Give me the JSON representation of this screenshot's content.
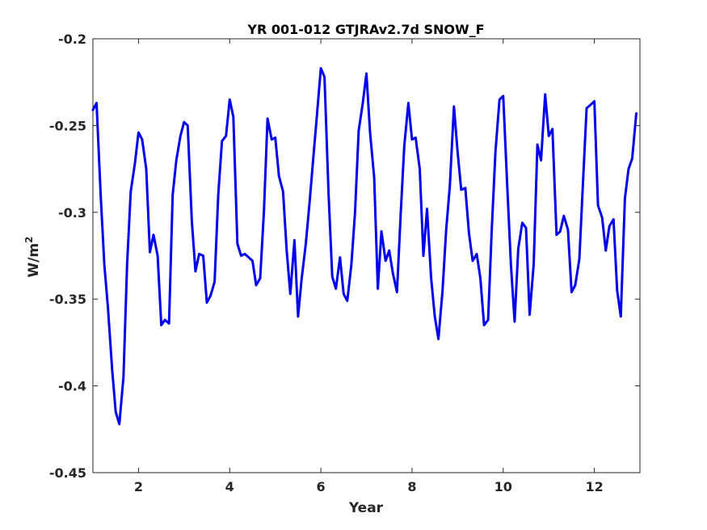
{
  "chart_data": {
    "type": "line",
    "title": "YR 001-012 GTJRAv2.7d SNOW_F",
    "xlabel": "Year",
    "ylabel": "W/m",
    "ylabel_sup": "2",
    "xlim": [
      1,
      13
    ],
    "ylim": [
      -0.45,
      -0.2
    ],
    "xticks": [
      2,
      4,
      6,
      8,
      10,
      12
    ],
    "xtick_labels": [
      "2",
      "4",
      "6",
      "8",
      "10",
      "12"
    ],
    "yticks": [
      -0.45,
      -0.4,
      -0.35,
      -0.3,
      -0.25,
      -0.2
    ],
    "ytick_labels": [
      "-0.45",
      "-0.4",
      "-0.35",
      "-0.3",
      "-0.25",
      "-0.2"
    ],
    "grid": true,
    "series": [
      {
        "color": "#0000ee",
        "x": [
          1.0,
          1.08,
          1.17,
          1.25,
          1.33,
          1.42,
          1.5,
          1.58,
          1.67,
          1.75,
          1.83,
          1.92,
          2.0,
          2.08,
          2.17,
          2.25,
          2.33,
          2.42,
          2.5,
          2.58,
          2.67,
          2.75,
          2.83,
          2.92,
          3.0,
          3.08,
          3.17,
          3.25,
          3.33,
          3.42,
          3.5,
          3.58,
          3.67,
          3.75,
          3.83,
          3.92,
          4.0,
          4.08,
          4.17,
          4.25,
          4.33,
          4.42,
          4.5,
          4.58,
          4.67,
          4.75,
          4.83,
          4.92,
          5.0,
          5.08,
          5.17,
          5.25,
          5.33,
          5.42,
          5.5,
          5.58,
          5.67,
          5.75,
          5.83,
          5.92,
          6.0,
          6.08,
          6.17,
          6.25,
          6.33,
          6.42,
          6.5,
          6.58,
          6.67,
          6.75,
          6.83,
          6.92,
          7.0,
          7.08,
          7.17,
          7.25,
          7.33,
          7.42,
          7.5,
          7.58,
          7.67,
          7.75,
          7.83,
          7.92,
          8.0,
          8.08,
          8.17,
          8.25,
          8.33,
          8.42,
          8.5,
          8.58,
          8.67,
          8.75,
          8.83,
          8.92,
          9.0,
          9.08,
          9.17,
          9.25,
          9.33,
          9.42,
          9.5,
          9.58,
          9.67,
          9.75,
          9.83,
          9.92,
          10.0,
          10.08,
          10.17,
          10.25,
          10.33,
          10.42,
          10.5,
          10.58,
          10.67,
          10.75,
          10.83,
          10.92,
          11.0,
          11.08,
          11.17,
          11.25,
          11.33,
          11.42,
          11.5,
          11.58,
          11.67,
          11.75,
          11.83,
          11.92,
          12.0,
          12.08,
          12.17,
          12.25,
          12.33,
          12.42,
          12.5,
          12.58,
          12.67,
          12.75,
          12.83,
          12.92
        ],
        "y": [
          -0.241,
          -0.237,
          -0.29,
          -0.33,
          -0.355,
          -0.39,
          -0.415,
          -0.422,
          -0.395,
          -0.33,
          -0.288,
          -0.272,
          -0.254,
          -0.258,
          -0.275,
          -0.323,
          -0.313,
          -0.325,
          -0.365,
          -0.362,
          -0.364,
          -0.29,
          -0.27,
          -0.256,
          -0.248,
          -0.25,
          -0.305,
          -0.334,
          -0.324,
          -0.325,
          -0.352,
          -0.348,
          -0.34,
          -0.29,
          -0.259,
          -0.256,
          -0.235,
          -0.245,
          -0.318,
          -0.325,
          -0.324,
          -0.326,
          -0.328,
          -0.342,
          -0.338,
          -0.3,
          -0.246,
          -0.258,
          -0.257,
          -0.279,
          -0.288,
          -0.322,
          -0.347,
          -0.316,
          -0.36,
          -0.338,
          -0.318,
          -0.295,
          -0.27,
          -0.242,
          -0.217,
          -0.222,
          -0.29,
          -0.337,
          -0.344,
          -0.326,
          -0.347,
          -0.351,
          -0.33,
          -0.3,
          -0.253,
          -0.237,
          -0.22,
          -0.254,
          -0.28,
          -0.344,
          -0.311,
          -0.328,
          -0.322,
          -0.335,
          -0.346,
          -0.302,
          -0.262,
          -0.237,
          -0.258,
          -0.257,
          -0.275,
          -0.325,
          -0.298,
          -0.338,
          -0.36,
          -0.373,
          -0.345,
          -0.31,
          -0.285,
          -0.239,
          -0.265,
          -0.287,
          -0.286,
          -0.312,
          -0.328,
          -0.324,
          -0.338,
          -0.365,
          -0.362,
          -0.31,
          -0.265,
          -0.235,
          -0.233,
          -0.28,
          -0.33,
          -0.363,
          -0.321,
          -0.306,
          -0.309,
          -0.359,
          -0.33,
          -0.261,
          -0.27,
          -0.232,
          -0.256,
          -0.252,
          -0.313,
          -0.311,
          -0.302,
          -0.31,
          -0.346,
          -0.342,
          -0.327,
          -0.283,
          -0.24,
          -0.238,
          -0.236,
          -0.296,
          -0.303,
          -0.322,
          -0.308,
          -0.304,
          -0.345,
          -0.36,
          -0.292,
          -0.275,
          -0.269,
          -0.243
        ]
      }
    ]
  }
}
